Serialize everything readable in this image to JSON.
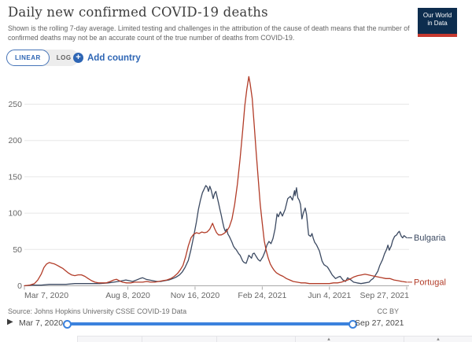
{
  "header": {
    "title": "Daily new confirmed COVID-19 deaths",
    "subtitle": "Shown is the rolling 7-day average. Limited testing and challenges in the attribution of the cause of death means that the number of confirmed deaths may not be an accurate count of the true number of deaths from COVID-19.",
    "logo": {
      "line1": "Our World",
      "line2": "in Data"
    }
  },
  "controls": {
    "linear_label": "LINEAR",
    "log_label": "LOG",
    "add_country_label": "Add country",
    "plus_icon": "+"
  },
  "colors": {
    "bulgaria": "#3c4a62",
    "portugal": "#b23c28",
    "accent_blue": "#2d65b4",
    "slider_blue": "#3b82dd",
    "grid": "#e7e7e7",
    "axis": "#a8a8a8",
    "tick_text": "#666666"
  },
  "chart_data": {
    "type": "line",
    "title": "Daily new confirmed COVID-19 deaths",
    "xlabel": "",
    "ylabel": "",
    "x_encoding": "days since Mar 7, 2020",
    "x_domain_days": [
      0,
      569
    ],
    "ylim": [
      0,
      300
    ],
    "grid": true,
    "legend_position": "line-end-labels",
    "y_ticks": [
      0,
      50,
      100,
      150,
      200,
      250
    ],
    "x_ticks": [
      {
        "label": "Mar 7, 2020",
        "day": 0
      },
      {
        "label": "Aug 8, 2020",
        "day": 154
      },
      {
        "label": "Nov 16, 2020",
        "day": 254
      },
      {
        "label": "Feb 24, 2021",
        "day": 354
      },
      {
        "label": "Jun 4, 2021",
        "day": 454
      },
      {
        "label": "Sep 27, 2021",
        "day": 569
      }
    ],
    "series": [
      {
        "name": "Bulgaria",
        "color": "#3c4a62",
        "points": [
          [
            0,
            0
          ],
          [
            12,
            1
          ],
          [
            25,
            1
          ],
          [
            37,
            2
          ],
          [
            50,
            2
          ],
          [
            62,
            2
          ],
          [
            75,
            3
          ],
          [
            87,
            3
          ],
          [
            100,
            3
          ],
          [
            112,
            3
          ],
          [
            125,
            4
          ],
          [
            133,
            5
          ],
          [
            140,
            6
          ],
          [
            146,
            7
          ],
          [
            151,
            8
          ],
          [
            156,
            7
          ],
          [
            161,
            6
          ],
          [
            167,
            8
          ],
          [
            172,
            10
          ],
          [
            176,
            11
          ],
          [
            181,
            9
          ],
          [
            186,
            8
          ],
          [
            191,
            7
          ],
          [
            197,
            6
          ],
          [
            203,
            6
          ],
          [
            209,
            7
          ],
          [
            215,
            8
          ],
          [
            221,
            10
          ],
          [
            226,
            12
          ],
          [
            231,
            15
          ],
          [
            235,
            19
          ],
          [
            239,
            25
          ],
          [
            244,
            35
          ],
          [
            248,
            50
          ],
          [
            252,
            68
          ],
          [
            256,
            88
          ],
          [
            259,
            105
          ],
          [
            262,
            118
          ],
          [
            265,
            128
          ],
          [
            268,
            134
          ],
          [
            270,
            138
          ],
          [
            272,
            136
          ],
          [
            274,
            130
          ],
          [
            276,
            137
          ],
          [
            278,
            132
          ],
          [
            281,
            120
          ],
          [
            283,
            127
          ],
          [
            285,
            130
          ],
          [
            287,
            122
          ],
          [
            289,
            114
          ],
          [
            291,
            105
          ],
          [
            293,
            97
          ],
          [
            295,
            88
          ],
          [
            297,
            80
          ],
          [
            299,
            75
          ],
          [
            301,
            78
          ],
          [
            303,
            71
          ],
          [
            305,
            68
          ],
          [
            307,
            64
          ],
          [
            309,
            60
          ],
          [
            311,
            55
          ],
          [
            313,
            52
          ],
          [
            315,
            50
          ],
          [
            317,
            47
          ],
          [
            319,
            44
          ],
          [
            321,
            42
          ],
          [
            323,
            38
          ],
          [
            325,
            34
          ],
          [
            327,
            32
          ],
          [
            330,
            31
          ],
          [
            332,
            36
          ],
          [
            334,
            42
          ],
          [
            336,
            40
          ],
          [
            338,
            38
          ],
          [
            340,
            44
          ],
          [
            342,
            45
          ],
          [
            344,
            42
          ],
          [
            346,
            39
          ],
          [
            348,
            36
          ],
          [
            351,
            34
          ],
          [
            353,
            37
          ],
          [
            355,
            40
          ],
          [
            358,
            47
          ],
          [
            361,
            56
          ],
          [
            364,
            61
          ],
          [
            367,
            58
          ],
          [
            370,
            65
          ],
          [
            373,
            78
          ],
          [
            376,
            99
          ],
          [
            378,
            95
          ],
          [
            381,
            102
          ],
          [
            384,
            96
          ],
          [
            388,
            105
          ],
          [
            392,
            120
          ],
          [
            396,
            123
          ],
          [
            399,
            118
          ],
          [
            402,
            131
          ],
          [
            403,
            124
          ],
          [
            405,
            135
          ],
          [
            407,
            121
          ],
          [
            409,
            118
          ],
          [
            411,
            112
          ],
          [
            413,
            92
          ],
          [
            415,
            100
          ],
          [
            418,
            107
          ],
          [
            420,
            98
          ],
          [
            423,
            70
          ],
          [
            426,
            68
          ],
          [
            428,
            72
          ],
          [
            430,
            65
          ],
          [
            432,
            60
          ],
          [
            435,
            56
          ],
          [
            439,
            48
          ],
          [
            443,
            34
          ],
          [
            446,
            29
          ],
          [
            451,
            26
          ],
          [
            455,
            20
          ],
          [
            458,
            15
          ],
          [
            463,
            10
          ],
          [
            467,
            12
          ],
          [
            470,
            13
          ],
          [
            474,
            8
          ],
          [
            478,
            6
          ],
          [
            481,
            11
          ],
          [
            486,
            8
          ],
          [
            490,
            5
          ],
          [
            495,
            4
          ],
          [
            501,
            3
          ],
          [
            507,
            4
          ],
          [
            513,
            5
          ],
          [
            516,
            8
          ],
          [
            519,
            10
          ],
          [
            522,
            14
          ],
          [
            526,
            20
          ],
          [
            529,
            28
          ],
          [
            533,
            36
          ],
          [
            536,
            44
          ],
          [
            539,
            50
          ],
          [
            541,
            56
          ],
          [
            543,
            49
          ],
          [
            546,
            55
          ],
          [
            548,
            62
          ],
          [
            551,
            68
          ],
          [
            554,
            70
          ],
          [
            556,
            73
          ],
          [
            558,
            75
          ],
          [
            561,
            68
          ],
          [
            563,
            66
          ],
          [
            565,
            69
          ],
          [
            569,
            66
          ]
        ]
      },
      {
        "name": "Portugal",
        "color": "#b23c28",
        "points": [
          [
            0,
            0
          ],
          [
            8,
            1
          ],
          [
            15,
            3
          ],
          [
            20,
            8
          ],
          [
            25,
            16
          ],
          [
            29,
            25
          ],
          [
            33,
            30
          ],
          [
            37,
            32
          ],
          [
            41,
            31
          ],
          [
            45,
            30
          ],
          [
            49,
            28
          ],
          [
            53,
            26
          ],
          [
            57,
            24
          ],
          [
            61,
            21
          ],
          [
            65,
            18
          ],
          [
            70,
            15
          ],
          [
            75,
            14
          ],
          [
            80,
            15
          ],
          [
            85,
            15
          ],
          [
            90,
            13
          ],
          [
            95,
            10
          ],
          [
            100,
            7
          ],
          [
            105,
            5
          ],
          [
            110,
            4
          ],
          [
            116,
            4
          ],
          [
            122,
            4
          ],
          [
            128,
            6
          ],
          [
            133,
            8
          ],
          [
            137,
            9
          ],
          [
            141,
            7
          ],
          [
            146,
            5
          ],
          [
            152,
            4
          ],
          [
            158,
            4
          ],
          [
            164,
            5
          ],
          [
            170,
            5
          ],
          [
            176,
            5
          ],
          [
            182,
            6
          ],
          [
            188,
            5
          ],
          [
            194,
            5
          ],
          [
            200,
            6
          ],
          [
            206,
            7
          ],
          [
            212,
            8
          ],
          [
            218,
            10
          ],
          [
            223,
            13
          ],
          [
            228,
            17
          ],
          [
            232,
            22
          ],
          [
            236,
            28
          ],
          [
            240,
            40
          ],
          [
            244,
            55
          ],
          [
            248,
            66
          ],
          [
            252,
            71
          ],
          [
            256,
            73
          ],
          [
            260,
            72
          ],
          [
            264,
            74
          ],
          [
            268,
            73
          ],
          [
            272,
            74
          ],
          [
            276,
            78
          ],
          [
            280,
            86
          ],
          [
            283,
            79
          ],
          [
            286,
            73
          ],
          [
            289,
            70
          ],
          [
            293,
            70
          ],
          [
            297,
            72
          ],
          [
            301,
            75
          ],
          [
            305,
            81
          ],
          [
            309,
            92
          ],
          [
            313,
            112
          ],
          [
            317,
            140
          ],
          [
            321,
            175
          ],
          [
            325,
            215
          ],
          [
            328,
            248
          ],
          [
            331,
            270
          ],
          [
            334,
            288
          ],
          [
            336,
            278
          ],
          [
            339,
            258
          ],
          [
            342,
            222
          ],
          [
            345,
            183
          ],
          [
            348,
            148
          ],
          [
            351,
            112
          ],
          [
            354,
            86
          ],
          [
            357,
            62
          ],
          [
            360,
            48
          ],
          [
            363,
            38
          ],
          [
            366,
            30
          ],
          [
            369,
            25
          ],
          [
            372,
            21
          ],
          [
            375,
            18
          ],
          [
            380,
            15
          ],
          [
            385,
            13
          ],
          [
            390,
            10
          ],
          [
            395,
            8
          ],
          [
            400,
            6
          ],
          [
            406,
            5
          ],
          [
            412,
            4
          ],
          [
            418,
            4
          ],
          [
            424,
            3
          ],
          [
            430,
            3
          ],
          [
            436,
            3
          ],
          [
            442,
            3
          ],
          [
            448,
            3
          ],
          [
            454,
            3
          ],
          [
            460,
            4
          ],
          [
            466,
            4
          ],
          [
            472,
            5
          ],
          [
            478,
            7
          ],
          [
            484,
            9
          ],
          [
            490,
            12
          ],
          [
            496,
            14
          ],
          [
            502,
            15
          ],
          [
            507,
            16
          ],
          [
            512,
            15
          ],
          [
            517,
            14
          ],
          [
            522,
            13
          ],
          [
            527,
            12
          ],
          [
            532,
            11
          ],
          [
            538,
            10
          ],
          [
            544,
            10
          ],
          [
            550,
            8
          ],
          [
            556,
            7
          ],
          [
            562,
            6
          ],
          [
            569,
            5
          ]
        ]
      }
    ]
  },
  "footer": {
    "source": "Source: Johns Hopkins University CSSE COVID-19 Data",
    "license": "CC BY"
  },
  "timeline": {
    "start_label": "Mar 7, 2020",
    "end_label": "Sep 27, 2021"
  },
  "icons": {
    "play": "▶",
    "sort": "▲"
  }
}
